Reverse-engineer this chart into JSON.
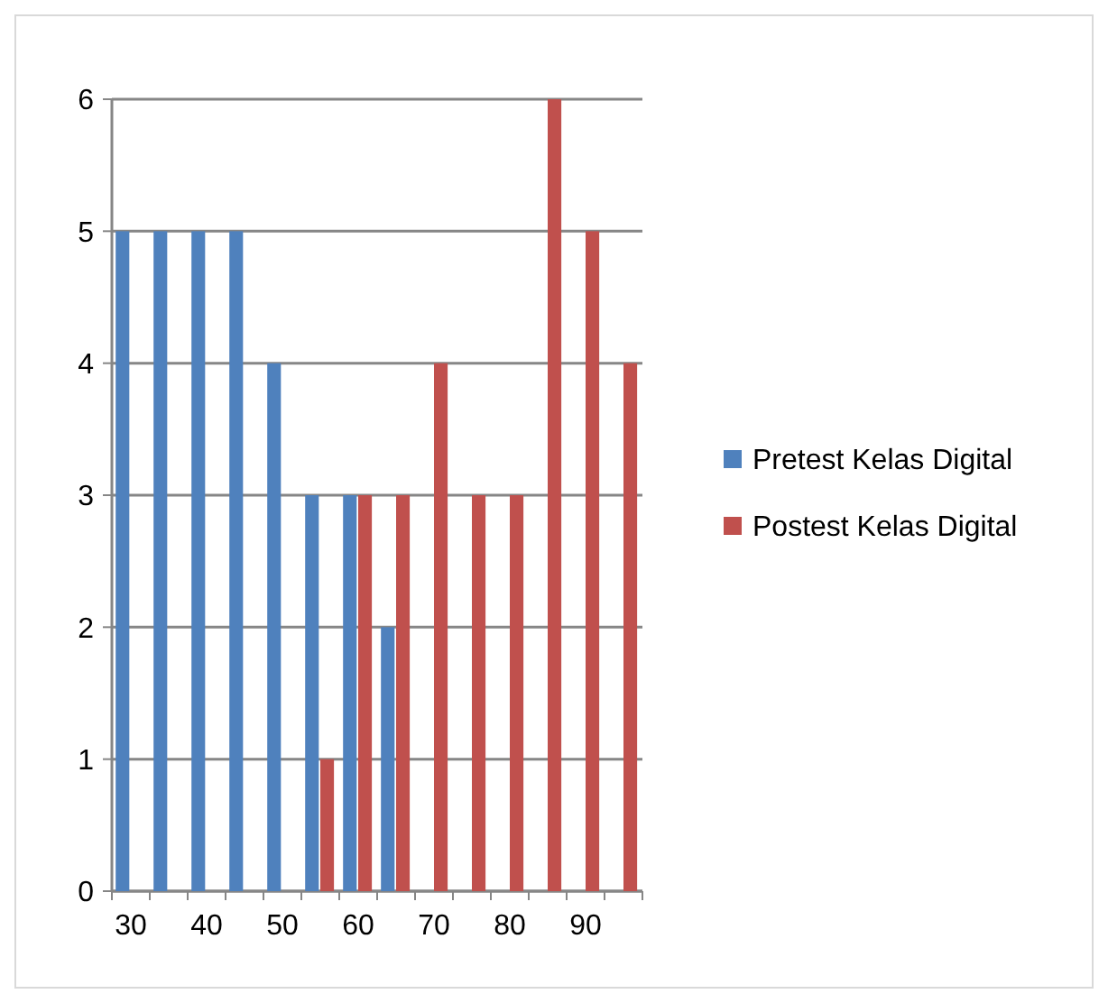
{
  "chart_data": {
    "type": "bar",
    "categories": [
      "30",
      null,
      "40",
      null,
      "50",
      null,
      "60",
      null,
      "70",
      null,
      "80",
      null,
      "90",
      null
    ],
    "series": [
      {
        "name": "Pretest Kelas Digital",
        "color": "#4f81bd",
        "values": [
          5,
          5,
          5,
          5,
          4,
          3,
          3,
          2,
          null,
          null,
          null,
          null,
          null,
          null
        ]
      },
      {
        "name": "Postest Kelas Digital",
        "color": "#c0504d",
        "values": [
          null,
          null,
          null,
          null,
          null,
          1,
          3,
          3,
          4,
          3,
          3,
          6,
          5,
          4
        ]
      }
    ],
    "ylim": [
      0,
      6
    ],
    "yticks": [
      0,
      1,
      2,
      3,
      4,
      5,
      6
    ],
    "grid": "y",
    "legend": "right"
  }
}
